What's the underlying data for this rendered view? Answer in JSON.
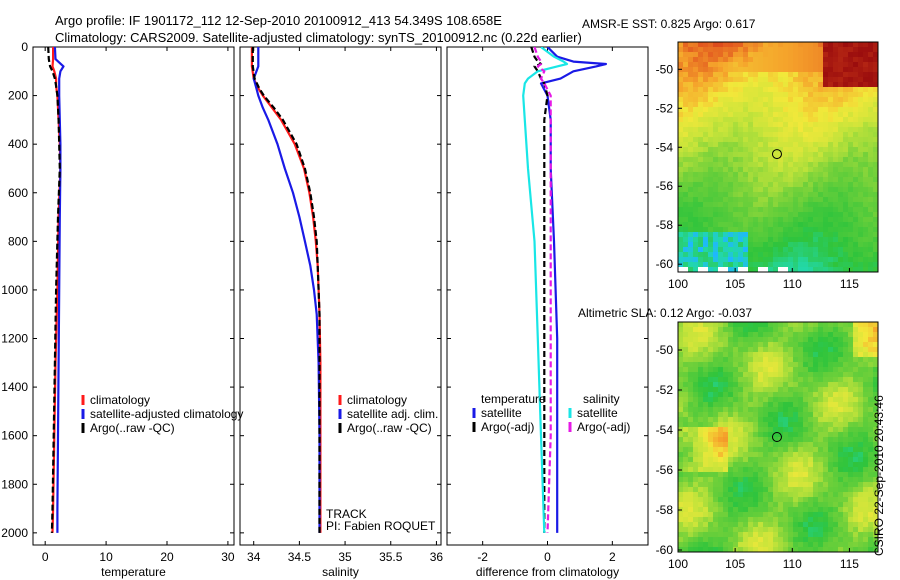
{
  "header": {
    "line1": "Argo profile: IF 1901172_112 12-Sep-2010 20100912_413 54.349S 108.658E",
    "line2": "Climatology: CARS2009. Satellite-adjusted climatology: synTS_20100912.nc (0.22d earlier)"
  },
  "side_label": "CSIRO 22-Sep-2010 20:43:46",
  "colors": {
    "red": "#ff1a1a",
    "blue": "#1a1ae6",
    "black": "#000000",
    "cyan": "#19e6e6",
    "magenta": "#e619e6"
  },
  "chart_data": [
    {
      "id": "temperature",
      "type": "line",
      "xlabel": "temperature",
      "xlim": [
        -2,
        31
      ],
      "xticks": [
        0,
        10,
        20,
        30
      ],
      "ylim": [
        0,
        2050
      ],
      "yticks": [
        0,
        200,
        400,
        600,
        800,
        1000,
        1200,
        1400,
        1600,
        1800,
        2000
      ],
      "y": [
        0,
        50,
        80,
        100,
        130,
        160,
        200,
        300,
        400,
        500,
        700,
        1000,
        1300,
        1600,
        1900,
        2000
      ],
      "series": [
        {
          "name": "climatology",
          "color": "red",
          "dash": "",
          "x": [
            1.3,
            1.3,
            1.2,
            1.5,
            1.8,
            1.8,
            2.0,
            2.2,
            2.4,
            2.5,
            2.2,
            2.0,
            1.7,
            1.5,
            1.3,
            1.2
          ]
        },
        {
          "name": "satellite-adjusted climatology",
          "color": "blue",
          "dash": "",
          "x": [
            1.6,
            1.7,
            3.0,
            2.5,
            2.3,
            2.3,
            2.3,
            2.4,
            2.5,
            2.5,
            2.4,
            2.3,
            2.2,
            2.1,
            2.0,
            2.0
          ]
        },
        {
          "name": "Argo(..raw -QC)",
          "color": "black",
          "dash": "6,3",
          "x": [
            0.5,
            0.6,
            0.8,
            1.2,
            1.6,
            1.8,
            2.0,
            2.2,
            2.3,
            2.4,
            2.1,
            1.8,
            1.6,
            1.4,
            1.2,
            1.1
          ]
        }
      ],
      "legend": [
        "climatology",
        "satellite-adjusted climatology",
        "Argo(..raw -QC)"
      ]
    },
    {
      "id": "salinity",
      "type": "line",
      "xlabel": "salinity",
      "xlim": [
        33.85,
        36.05
      ],
      "xticks": [
        34,
        34.5,
        35,
        35.5,
        36
      ],
      "ylim": [
        0,
        2050
      ],
      "yticks": [
        0,
        200,
        400,
        600,
        800,
        1000,
        1200,
        1400,
        1600,
        1800,
        2000
      ],
      "y": [
        0,
        40,
        80,
        130,
        170,
        200,
        250,
        300,
        400,
        500,
        600,
        700,
        800,
        900,
        1000,
        1100,
        1300,
        1600,
        1900,
        2000
      ],
      "series": [
        {
          "name": "climatology",
          "color": "red",
          "dash": "",
          "x": [
            33.98,
            33.98,
            33.98,
            34.0,
            34.05,
            34.1,
            34.2,
            34.3,
            34.45,
            34.55,
            34.61,
            34.65,
            34.68,
            34.7,
            34.71,
            34.72,
            34.73,
            34.73,
            34.73,
            34.73
          ]
        },
        {
          "name": "satellite adj. clim.",
          "color": "blue",
          "dash": "",
          "x": [
            34.05,
            34.05,
            34.05,
            34.0,
            34.03,
            34.05,
            34.1,
            34.16,
            34.26,
            34.34,
            34.43,
            34.5,
            34.56,
            34.62,
            34.66,
            34.69,
            34.71,
            34.72,
            34.72,
            34.72
          ]
        },
        {
          "name": "Argo(..raw -QC)",
          "color": "black",
          "dash": "6,3",
          "x": [
            33.99,
            33.99,
            33.99,
            34.01,
            34.06,
            34.11,
            34.22,
            34.32,
            34.47,
            34.56,
            34.62,
            34.66,
            34.69,
            34.7,
            34.71,
            34.72,
            34.72,
            34.72,
            34.72,
            34.72
          ]
        }
      ],
      "legend": [
        "climatology",
        "satellite adj. clim.",
        "Argo(..raw -QC)"
      ],
      "annotations": [
        "TRACK",
        "PI: Fabien ROQUET"
      ]
    },
    {
      "id": "difference",
      "type": "line",
      "xlabel": "difference from climatology",
      "xlim": [
        -3.1,
        3.1
      ],
      "xticks": [
        -2,
        0,
        2
      ],
      "ylim": [
        0,
        2050
      ],
      "yticks": [
        0,
        200,
        400,
        600,
        800,
        1000,
        1200,
        1400,
        1600,
        1800,
        2000
      ],
      "y": [
        0,
        40,
        60,
        70,
        80,
        100,
        130,
        150,
        200,
        300,
        500,
        800,
        1200,
        1600,
        2000
      ],
      "series": [
        {
          "name": "temperature satellite",
          "color": "blue",
          "dash": "",
          "x": [
            0.0,
            0.3,
            0.8,
            1.8,
            1.5,
            0.8,
            0.4,
            -0.2,
            0.0,
            0.1,
            0.1,
            0.2,
            0.3,
            0.3,
            0.3
          ]
        },
        {
          "name": "temperature Argo(-adj)",
          "color": "black",
          "dash": "6,3",
          "x": [
            -0.5,
            -0.4,
            -0.3,
            -0.2,
            -0.4,
            -0.3,
            -0.2,
            -0.1,
            0.0,
            -0.1,
            -0.1,
            -0.1,
            -0.1,
            -0.1,
            -0.1
          ]
        },
        {
          "name": "salinity satellite",
          "color": "cyan",
          "dash": "",
          "x": [
            -0.2,
            0.2,
            0.5,
            0.6,
            0.3,
            -0.3,
            -0.6,
            -0.7,
            -0.75,
            -0.7,
            -0.6,
            -0.4,
            -0.3,
            -0.2,
            -0.1
          ]
        },
        {
          "name": "salinity Argo(-adj)",
          "color": "magenta",
          "dash": "6,3",
          "x": [
            -0.4,
            -0.3,
            -0.2,
            -0.2,
            -0.3,
            -0.1,
            -0.2,
            -0.1,
            0.1,
            0.1,
            0.1,
            0.1,
            0.1,
            0.1,
            0.0
          ]
        }
      ],
      "legend_groups": [
        {
          "title": "temperature",
          "items": [
            "satellite",
            "Argo(-adj)"
          ]
        },
        {
          "title": "salinity",
          "items": [
            "satellite",
            "Argo(-adj)"
          ]
        }
      ]
    },
    {
      "id": "sst-map",
      "type": "heatmap",
      "title": "AMSR-E SST: 0.825 Argo: 0.617",
      "xlim": [
        100,
        117.5
      ],
      "ylim": [
        -60.4,
        -48.6
      ],
      "xticks": [
        100,
        105,
        110,
        115
      ],
      "yticks": [
        -50,
        -52,
        -54,
        -56,
        -58,
        -60
      ],
      "marker": {
        "lon": 108.66,
        "lat": -54.35
      }
    },
    {
      "id": "sla-map",
      "type": "heatmap",
      "title": "Altimetric SLA: 0.12 Argo: -0.037",
      "xlim": [
        100,
        117.5
      ],
      "ylim": [
        -60.1,
        -48.6
      ],
      "xticks": [
        100,
        105,
        110,
        115
      ],
      "yticks": [
        -50,
        -52,
        -54,
        -56,
        -58,
        -60
      ],
      "marker": {
        "lon": 108.66,
        "lat": -54.35
      }
    }
  ]
}
